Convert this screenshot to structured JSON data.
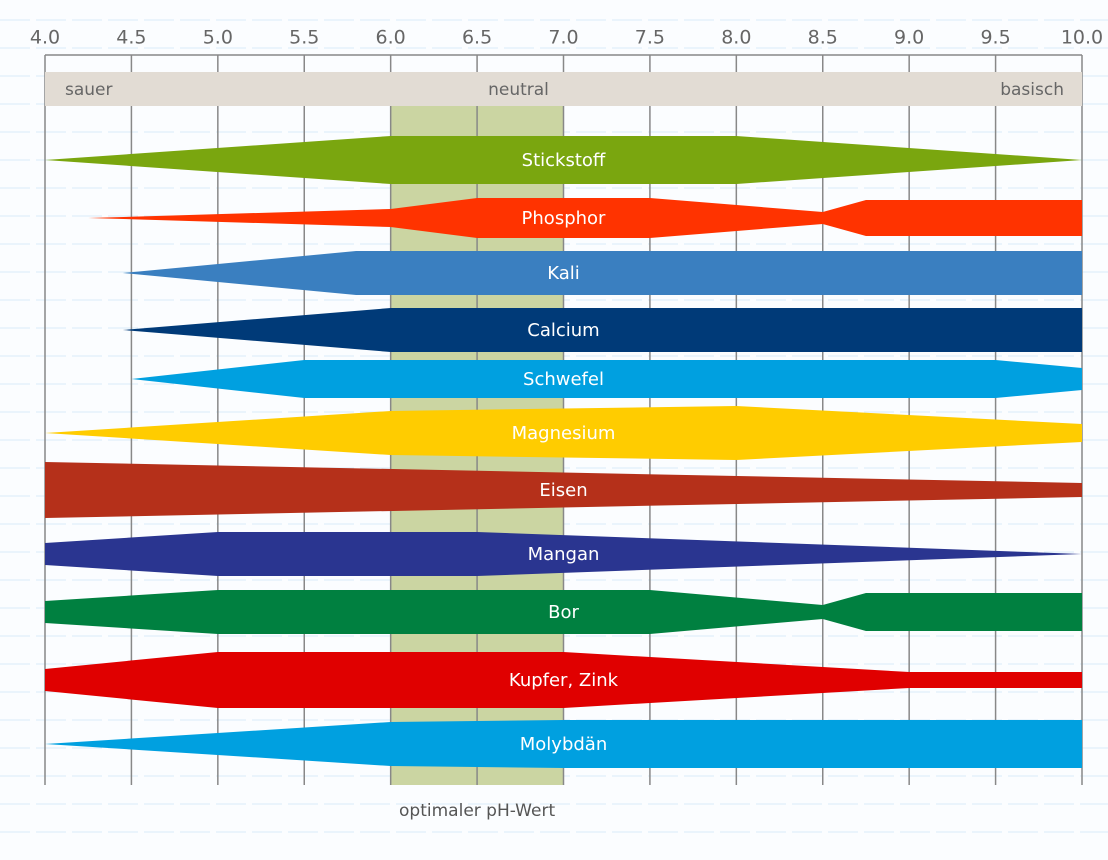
{
  "chart_data": {
    "type": "band",
    "xlim": [
      4.0,
      10.0
    ],
    "xticks": [
      {
        "value": 4.0,
        "label": "4.0"
      },
      {
        "value": 4.5,
        "label": "4.5"
      },
      {
        "value": 5.0,
        "label": "5.0"
      },
      {
        "value": 5.5,
        "label": "5.5"
      },
      {
        "value": 6.0,
        "label": "6.0"
      },
      {
        "value": 6.5,
        "label": "6.5"
      },
      {
        "value": 7.0,
        "label": "7.0"
      },
      {
        "value": 7.5,
        "label": "7.5"
      },
      {
        "value": 8.0,
        "label": "8.0"
      },
      {
        "value": 8.5,
        "label": "8.5"
      },
      {
        "value": 9.0,
        "label": "9.0"
      },
      {
        "value": 9.5,
        "label": "9.5"
      },
      {
        "value": 10.0,
        "label": "10.0"
      }
    ],
    "grid": true,
    "scale_labels": [
      "sauer",
      "neutral",
      "basisch"
    ],
    "optimum": {
      "label": "optimaler pH-Wert",
      "range": [
        6.0,
        7.0
      ]
    },
    "series": [
      {
        "name": "Stickstoff",
        "color": "#7aa60f",
        "x": [
          4.0,
          6.0,
          8.0,
          10.0
        ],
        "values": [
          0,
          48,
          48,
          0
        ]
      },
      {
        "name": "Phosphor",
        "color": "#ff3300",
        "x": [
          4.25,
          6.0,
          6.5,
          7.5,
          8.5,
          8.75,
          10.0
        ],
        "values": [
          0,
          18,
          40,
          40,
          12,
          36,
          36
        ]
      },
      {
        "name": "Kali",
        "color": "#3a7fc0",
        "x": [
          4.45,
          5.8,
          10.0
        ],
        "values": [
          0,
          44,
          44
        ]
      },
      {
        "name": "Calcium",
        "color": "#003a78",
        "x": [
          4.45,
          6.0,
          10.0
        ],
        "values": [
          0,
          44,
          44
        ]
      },
      {
        "name": "Schwefel",
        "color": "#00a0e0",
        "x": [
          4.5,
          5.5,
          9.5,
          10.0
        ],
        "values": [
          0,
          38,
          38,
          22
        ]
      },
      {
        "name": "Magnesium",
        "color": "#ffcc00",
        "x": [
          4.0,
          6.0,
          8.0,
          10.0
        ],
        "values": [
          0,
          44,
          54,
          18
        ]
      },
      {
        "name": "Eisen",
        "color": "#b5301a",
        "x": [
          4.0,
          10.0
        ],
        "values": [
          56,
          14
        ]
      },
      {
        "name": "Mangan",
        "color": "#2a3590",
        "x": [
          4.0,
          5.0,
          6.5,
          10.0
        ],
        "values": [
          22,
          44,
          44,
          0
        ]
      },
      {
        "name": "Bor",
        "color": "#008040",
        "x": [
          4.0,
          5.0,
          7.5,
          8.5,
          8.75,
          10.0
        ],
        "values": [
          22,
          44,
          44,
          14,
          38,
          38
        ]
      },
      {
        "name": "Kupfer, Zink",
        "color": "#e00000",
        "x": [
          4.0,
          5.0,
          7.0,
          9.0,
          10.0
        ],
        "values": [
          22,
          56,
          56,
          16,
          16
        ]
      },
      {
        "name": "Molybdän",
        "color": "#00a0e0",
        "x": [
          4.0,
          6.0,
          7.0,
          10.0
        ],
        "values": [
          0,
          44,
          48,
          48
        ]
      }
    ]
  }
}
